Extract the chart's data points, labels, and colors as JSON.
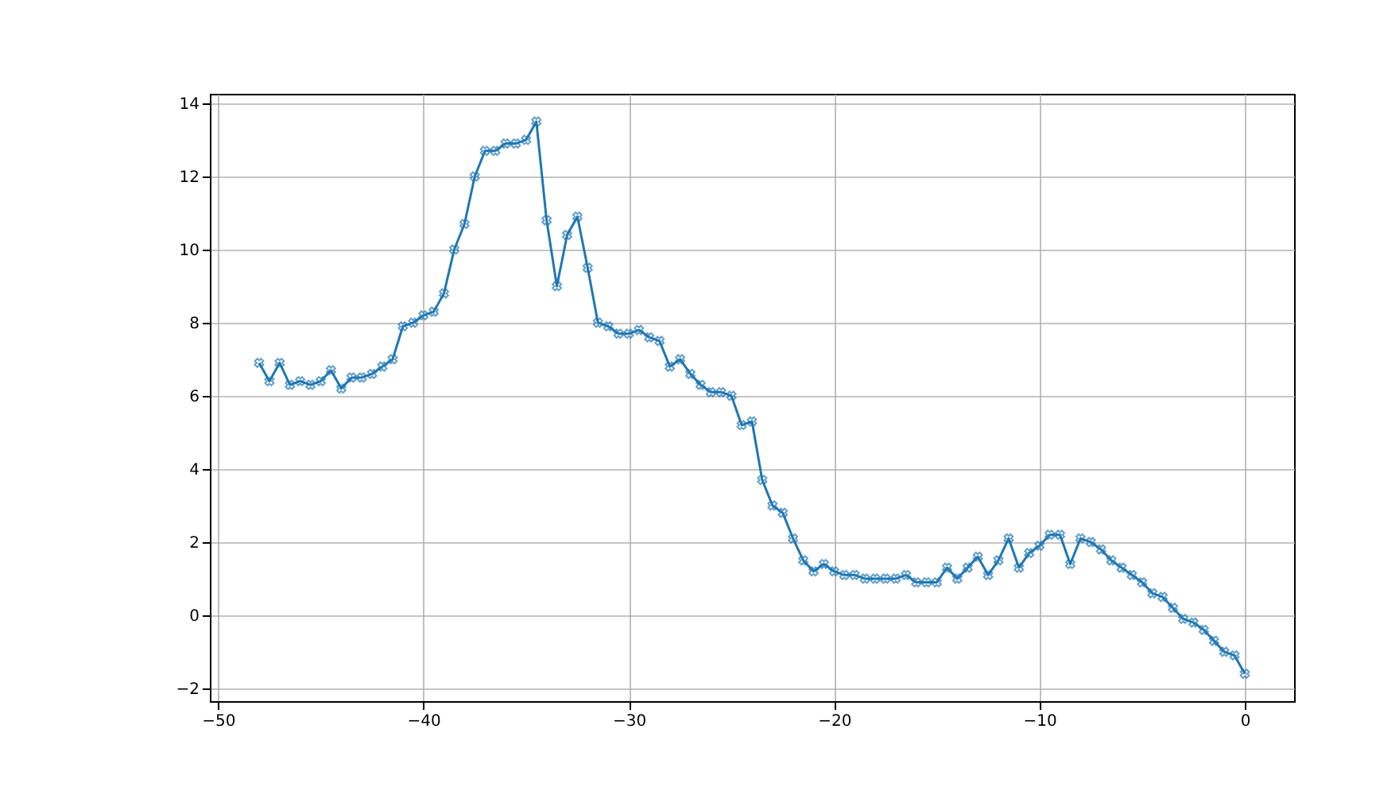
{
  "chart_data": {
    "type": "line",
    "x": [
      -48,
      -47.5,
      -47,
      -46.5,
      -46,
      -45.5,
      -45,
      -44.5,
      -44,
      -43.5,
      -43,
      -42.5,
      -42,
      -41.5,
      -41,
      -40.5,
      -40,
      -39.5,
      -39,
      -38.5,
      -38,
      -37.5,
      -37,
      -36.5,
      -36,
      -35.5,
      -35,
      -34.5,
      -34,
      -33.5,
      -33,
      -32.5,
      -32,
      -31.5,
      -31,
      -30.5,
      -30,
      -29.5,
      -29,
      -28.5,
      -28,
      -27.5,
      -27,
      -26.5,
      -26,
      -25.5,
      -25,
      -24.5,
      -24,
      -23.5,
      -23,
      -22.5,
      -22,
      -21.5,
      -21,
      -20.5,
      -20,
      -19.5,
      -19,
      -18.5,
      -18,
      -17.5,
      -17,
      -16.5,
      -16,
      -15.5,
      -15,
      -14.5,
      -14,
      -13.5,
      -13,
      -12.5,
      -12,
      -11.5,
      -11,
      -10.5,
      -10,
      -9.5,
      -9,
      -8.5,
      -8,
      -7.5,
      -7,
      -6.5,
      -6,
      -5.5,
      -5,
      -4.5,
      -4,
      -3.5,
      -3,
      -2.5,
      -2,
      -1.5,
      -1,
      -0.5,
      0
    ],
    "series": [
      {
        "color": "#1f77b4",
        "values": [
          6.9,
          6.4,
          6.9,
          6.3,
          6.4,
          6.3,
          6.4,
          6.7,
          6.2,
          6.5,
          6.5,
          6.6,
          6.8,
          7.0,
          7.9,
          8.0,
          8.2,
          8.3,
          8.8,
          10.0,
          10.7,
          12.0,
          12.7,
          12.7,
          12.9,
          12.9,
          13.0,
          13.5,
          10.8,
          9.0,
          10.4,
          10.9,
          9.5,
          8.0,
          7.9,
          7.7,
          7.7,
          7.8,
          7.6,
          7.5,
          6.8,
          7.0,
          6.6,
          6.3,
          6.1,
          6.1,
          6.0,
          5.2,
          5.3,
          3.7,
          3.0,
          2.8,
          2.1,
          1.5,
          1.2,
          1.4,
          1.2,
          1.1,
          1.1,
          1.0,
          1.0,
          1.0,
          1.0,
          1.1,
          0.9,
          0.9,
          0.9,
          1.3,
          1.0,
          1.3,
          1.6,
          1.1,
          1.5,
          2.1,
          1.3,
          1.7,
          1.9,
          2.2,
          2.2,
          1.4,
          2.1,
          2.0,
          1.8,
          1.5,
          1.3,
          1.1,
          0.9,
          0.6,
          0.5,
          0.2,
          -0.1,
          -0.2,
          -0.4,
          -0.7,
          -1.0,
          -1.1,
          -1.6
        ]
      }
    ],
    "xlim": [
      -50.4,
      2.4
    ],
    "xticks": [
      -50,
      -40,
      -30,
      -20,
      -10,
      0
    ],
    "ylim": [
      -2.35,
      14.26
    ],
    "yticks": [
      -2,
      0,
      2,
      4,
      6,
      8,
      10,
      12,
      14
    ],
    "grid": true,
    "marker": "cross",
    "line_style": "solid"
  }
}
